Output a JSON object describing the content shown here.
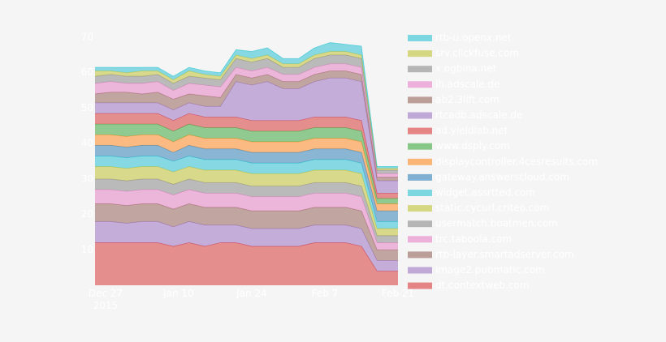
{
  "chart_data": {
    "type": "stacked-area",
    "x": [
      "2015-12-25",
      "2015-12-28",
      "2015-12-31",
      "2016-01-03",
      "2016-01-06",
      "2016-01-09",
      "2016-01-12",
      "2016-01-15",
      "2016-01-18",
      "2016-01-21",
      "2016-01-24",
      "2016-01-27",
      "2016-01-30",
      "2016-02-02",
      "2016-02-05",
      "2016-02-08",
      "2016-02-11",
      "2016-02-14",
      "2016-02-17",
      "2016-02-21"
    ],
    "xlim": [
      "2015-12-25",
      "2016-02-21"
    ],
    "xticks": [
      {
        "value": "2015-12-27",
        "label": "Dec 27\n2015"
      },
      {
        "value": "2016-01-10",
        "label": "Jan 10"
      },
      {
        "value": "2016-01-24",
        "label": "Jan 24"
      },
      {
        "value": "2016-02-07",
        "label": "Feb 7"
      },
      {
        "value": "2016-02-21",
        "label": "Feb 21"
      }
    ],
    "ylim": [
      0,
      70
    ],
    "yticks": [
      10,
      20,
      30,
      40,
      50,
      60,
      70
    ],
    "series": [
      {
        "name": "rtb-u.openx.net",
        "color": "#17becf",
        "values": [
          1,
          1,
          1.5,
          1,
          1,
          1,
          1,
          1,
          1,
          1.5,
          2,
          2,
          1.5,
          1.5,
          2,
          2.5,
          2,
          2.5,
          0.5,
          0.5
        ]
      },
      {
        "name": "srv.clickfuse.com",
        "color": "#bcbd22",
        "values": [
          1.5,
          1,
          1,
          1.5,
          1,
          1,
          1.5,
          1,
          1,
          1,
          1,
          1,
          1,
          1,
          1,
          1,
          1,
          1,
          0.5,
          0.5
        ]
      },
      {
        "name": "x.ogbina.net",
        "color": "#7f7f7f",
        "values": [
          2,
          2,
          2,
          2,
          2,
          2,
          2,
          2,
          2,
          2.5,
          2.5,
          2.5,
          2,
          2,
          2.5,
          2.5,
          2.5,
          2.5,
          1,
          1
        ]
      },
      {
        "name": "ih.adscale.de",
        "color": "#e377c2",
        "values": [
          3,
          3,
          2.5,
          3,
          3,
          2.5,
          3,
          3,
          3,
          2,
          2,
          2,
          2,
          2,
          2,
          2,
          2,
          2,
          1,
          1
        ]
      },
      {
        "name": "ab2.3lift.com",
        "color": "#8c564b",
        "values": [
          2.5,
          3,
          3,
          2.5,
          3,
          3,
          2.5,
          3,
          2.5,
          2,
          2,
          2,
          2,
          2,
          2,
          2,
          2,
          2,
          1,
          1
        ]
      },
      {
        "name": "rtcadb.adscale.de",
        "color": "#9467bd",
        "values": [
          3,
          3,
          3,
          3,
          3,
          3,
          3,
          3,
          3,
          10,
          10,
          11,
          9,
          9,
          10,
          11,
          11,
          11,
          3.5,
          3.5
        ]
      },
      {
        "name": "ad.yieldlab.net",
        "color": "#d62728",
        "values": [
          3,
          3,
          3,
          3,
          3,
          3,
          3,
          3,
          3,
          3,
          3,
          3,
          3,
          3,
          3,
          3,
          3,
          3,
          1.5,
          1.5
        ]
      },
      {
        "name": "www.dsply.com",
        "color": "#2ca02c",
        "values": [
          3,
          3,
          3.5,
          3,
          3,
          3,
          3,
          3,
          3,
          3,
          3,
          3,
          3,
          3,
          3,
          3,
          3,
          3,
          1.5,
          1.5
        ]
      },
      {
        "name": "displaycontroller.4cesresults.com",
        "color": "#ff7f0e",
        "values": [
          3,
          3,
          3,
          3,
          3,
          3,
          3,
          3,
          3,
          3,
          3,
          3,
          3,
          3,
          3,
          3,
          3,
          3,
          2,
          2
        ]
      },
      {
        "name": "gateway.answerscloud.com",
        "color": "#1f77b4",
        "values": [
          3,
          3,
          3,
          3,
          3,
          2.5,
          3,
          3,
          3,
          3,
          3,
          3,
          3,
          3,
          3,
          3,
          3,
          3,
          3,
          3
        ]
      },
      {
        "name": "widget.assrtted.com",
        "color": "#17becf",
        "values": [
          3,
          3,
          3,
          3,
          3,
          3,
          3,
          3,
          3,
          3,
          3,
          3,
          3,
          3,
          3,
          3,
          3,
          3,
          2,
          2
        ]
      },
      {
        "name": "static.cycurl.criteo.com",
        "color": "#bcbd22",
        "values": [
          3.5,
          3.5,
          3.5,
          3.5,
          3.5,
          3.5,
          3.5,
          3.5,
          3.5,
          3.5,
          3.5,
          3.5,
          3.5,
          3.5,
          3.5,
          3.5,
          3.5,
          3.5,
          2,
          2
        ]
      },
      {
        "name": "usermatch.boatmen.com",
        "color": "#7f7f7f",
        "values": [
          3,
          3,
          3,
          3,
          3,
          3,
          3,
          3,
          3,
          3,
          3,
          3,
          3,
          3,
          3,
          3,
          3,
          3,
          2,
          2
        ]
      },
      {
        "name": "trc.taboola.com",
        "color": "#e377c2",
        "values": [
          4,
          4,
          4,
          4,
          4,
          4,
          4,
          4,
          4,
          4,
          4,
          4,
          4,
          4,
          4,
          4,
          4,
          4,
          2,
          2
        ]
      },
      {
        "name": "rtb-layer.smartadserver.com",
        "color": "#8c564b",
        "values": [
          5,
          5,
          5,
          5,
          5,
          5,
          5,
          5,
          5,
          5,
          5,
          5,
          5,
          5,
          5,
          5,
          5,
          5,
          3,
          3
        ]
      },
      {
        "name": "image2.pubmatic.com",
        "color": "#9467bd",
        "values": [
          6,
          6,
          5.5,
          6,
          6,
          5.5,
          6,
          6,
          5,
          5,
          5,
          5,
          5,
          5,
          5,
          5,
          5,
          5,
          3,
          3
        ]
      },
      {
        "name": "dt.contextweb.com",
        "color": "#d62728",
        "values": [
          12,
          12,
          12,
          12,
          12,
          11,
          12,
          11,
          12,
          12,
          11,
          11,
          11,
          11,
          12,
          12,
          12,
          11,
          4,
          4
        ]
      }
    ]
  }
}
